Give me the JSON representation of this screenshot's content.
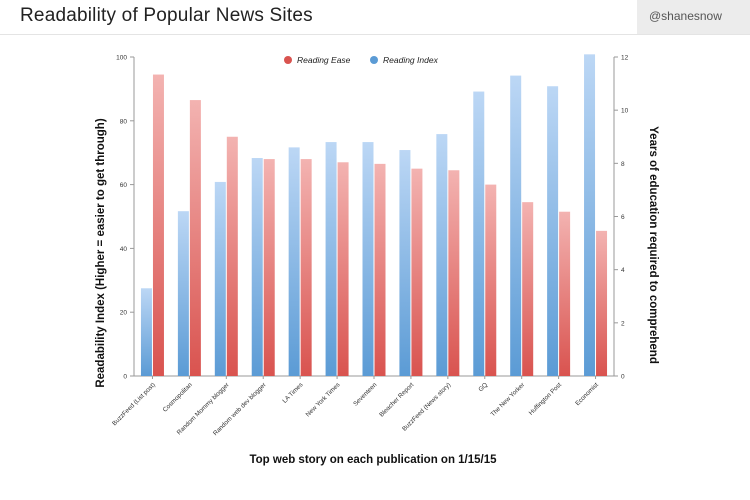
{
  "header": {
    "title": "Readability of Popular News Sites",
    "handle": "@shanesnow"
  },
  "chart_data": {
    "type": "bar",
    "title": "",
    "xlabel": "Top web story on each publication on 1/15/15",
    "ylabel_left": "Readability Index (Higher = easier to get through)",
    "ylabel_right": "Years of education required to comprehend",
    "ylim_left": [
      0,
      100
    ],
    "ylim_right": [
      0,
      12
    ],
    "yticks_left": [
      "0",
      "20",
      "40",
      "60",
      "80",
      "100"
    ],
    "yticks_right": [
      "0",
      "2",
      "4",
      "6",
      "8",
      "10",
      "12"
    ],
    "legend_position": "top-center",
    "categories": [
      "BuzzFeed (List post)",
      "Cosmopolitan",
      "Random Mommy blogger",
      "Random web dev blogger",
      "LA Times",
      "New York Times",
      "Seventeen",
      "Bleacher Report",
      "BuzzFeed (News story)",
      "GQ",
      "The New Yorker",
      "Huffington Post",
      "Economist"
    ],
    "series": [
      {
        "name": "Reading Ease",
        "axis": "left",
        "color": "#d9534f",
        "values": [
          94.5,
          86.5,
          75,
          68,
          68,
          67,
          66.5,
          65,
          64.5,
          60,
          54.5,
          51.5,
          45.5
        ]
      },
      {
        "name": "Reading Index",
        "axis": "right",
        "color": "#5b9bd5",
        "values": [
          3.3,
          6.2,
          7.3,
          8.2,
          8.6,
          8.8,
          8.8,
          8.5,
          9.1,
          10.7,
          11.3,
          10.9,
          12.1
        ]
      }
    ]
  }
}
